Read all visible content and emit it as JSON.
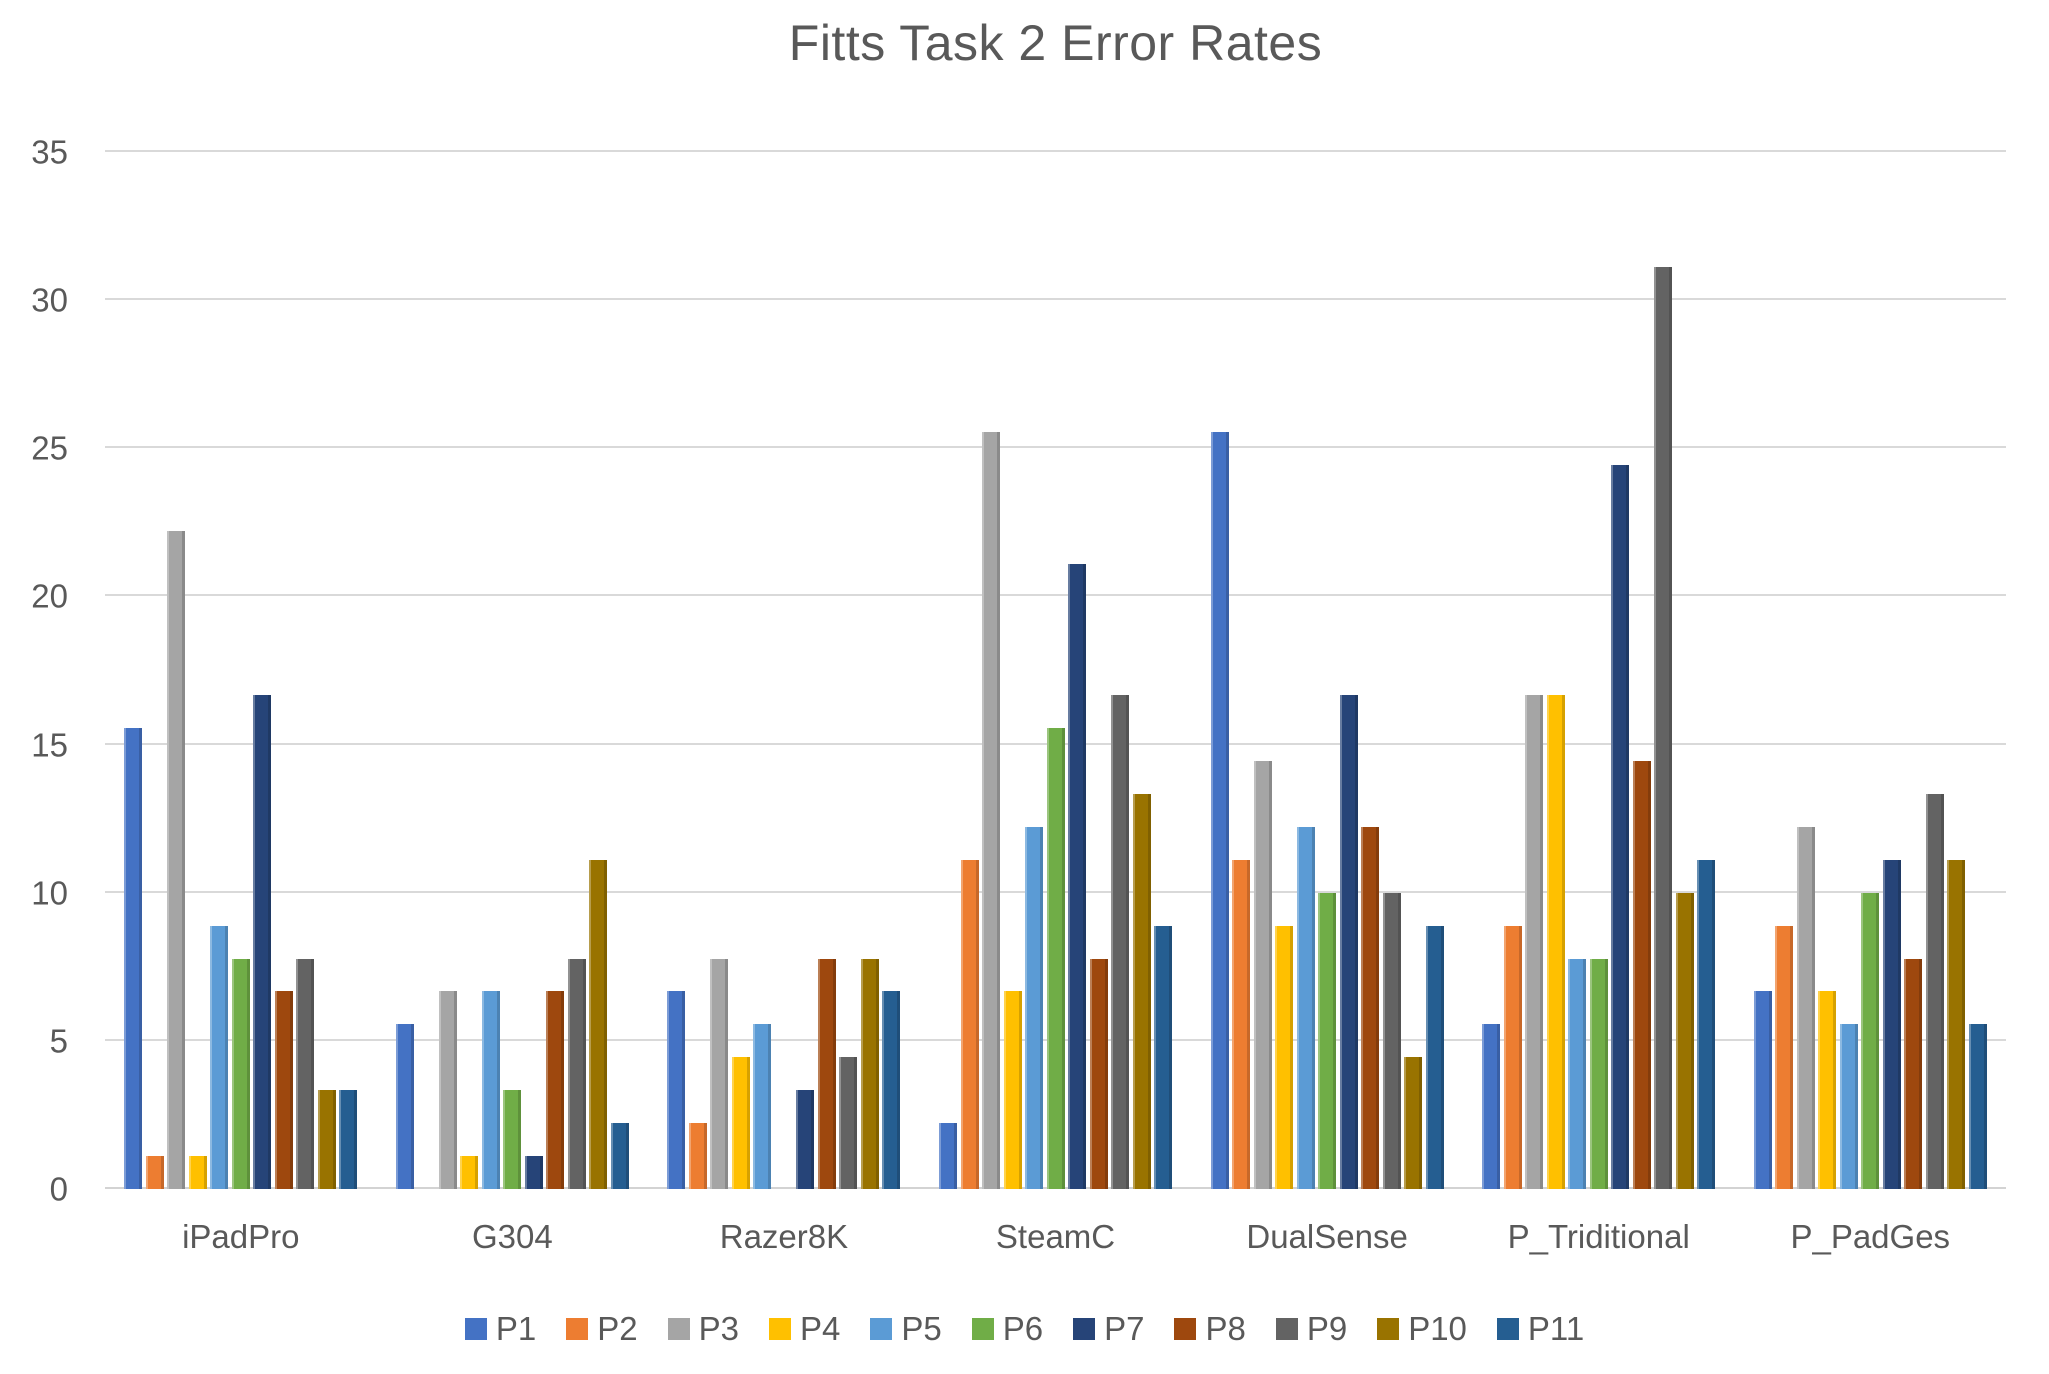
{
  "colors": {
    "background": "#FFFFFF",
    "text": "#595959",
    "gridline": "#D9D9D9",
    "axis_line": "#D3D3D3"
  },
  "chart_data": {
    "type": "bar",
    "title": "Fitts Task 2 Error Rates",
    "xlabel": "",
    "ylabel": "",
    "ylim": [
      0,
      35
    ],
    "yticks": [
      0,
      5,
      10,
      15,
      20,
      25,
      30,
      35
    ],
    "grid": true,
    "legend_position": "bottom",
    "categories": [
      "iPadPro",
      "G304",
      "Razer8K",
      "SteamC",
      "DualSense",
      "P_Triditional",
      "P_PadGes"
    ],
    "series": [
      {
        "name": "P1",
        "color": "#4472C4",
        "values": [
          15.56,
          5.56,
          6.67,
          2.22,
          25.56,
          5.56,
          6.67
        ]
      },
      {
        "name": "P2",
        "color": "#ED7D31",
        "values": [
          1.11,
          0,
          2.22,
          11.11,
          11.11,
          8.89,
          8.89
        ]
      },
      {
        "name": "P3",
        "color": "#A5A5A5",
        "values": [
          22.22,
          6.67,
          7.78,
          25.56,
          14.44,
          16.67,
          12.22
        ]
      },
      {
        "name": "P4",
        "color": "#FFC000",
        "values": [
          1.11,
          1.11,
          4.44,
          6.67,
          8.89,
          16.67,
          6.67
        ]
      },
      {
        "name": "P5",
        "color": "#5B9BD5",
        "values": [
          8.89,
          6.67,
          5.56,
          12.22,
          12.22,
          7.78,
          5.56
        ]
      },
      {
        "name": "P6",
        "color": "#70AD47",
        "values": [
          7.78,
          3.33,
          0,
          15.56,
          10,
          7.78,
          10
        ]
      },
      {
        "name": "P7",
        "color": "#264478",
        "values": [
          16.67,
          1.11,
          3.33,
          21.11,
          16.67,
          24.44,
          11.11
        ]
      },
      {
        "name": "P8",
        "color": "#9E480E",
        "values": [
          6.67,
          6.67,
          7.78,
          7.78,
          12.22,
          14.44,
          7.78
        ]
      },
      {
        "name": "P9",
        "color": "#636363",
        "values": [
          7.78,
          7.78,
          4.44,
          16.67,
          10,
          31.11,
          13.33
        ]
      },
      {
        "name": "P10",
        "color": "#997300",
        "values": [
          3.33,
          11.11,
          7.78,
          13.33,
          4.44,
          10,
          11.11
        ]
      },
      {
        "name": "P11",
        "color": "#255E91",
        "values": [
          3.33,
          2.22,
          6.67,
          8.89,
          8.89,
          11.11,
          5.56
        ]
      }
    ]
  }
}
